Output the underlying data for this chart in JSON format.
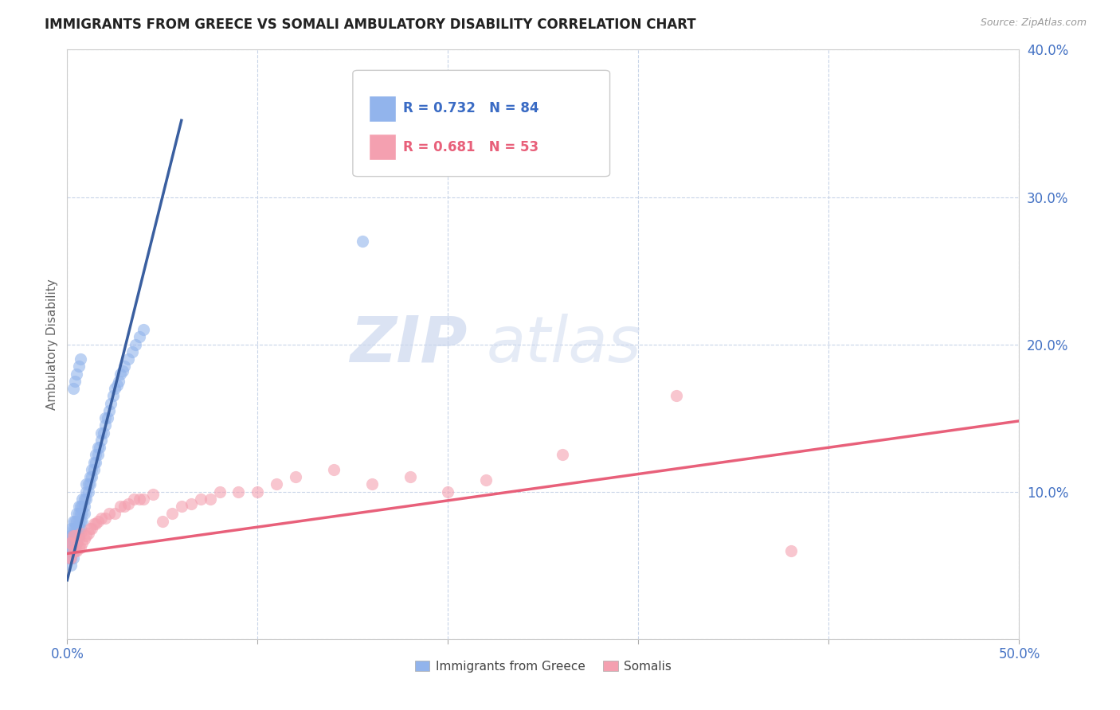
{
  "title": "IMMIGRANTS FROM GREECE VS SOMALI AMBULATORY DISABILITY CORRELATION CHART",
  "source": "Source: ZipAtlas.com",
  "ylabel": "Ambulatory Disability",
  "xlim": [
    0.0,
    0.5
  ],
  "ylim": [
    0.0,
    0.4
  ],
  "xticks": [
    0.0,
    0.1,
    0.2,
    0.3,
    0.4,
    0.5
  ],
  "yticks": [
    0.0,
    0.1,
    0.2,
    0.3,
    0.4
  ],
  "xtick_labels": [
    "0.0%",
    "",
    "",
    "",
    "",
    "50.0%"
  ],
  "ytick_labels_right": [
    "",
    "10.0%",
    "20.0%",
    "30.0%",
    "40.0%"
  ],
  "legend_labels": [
    "Immigrants from Greece",
    "Somalis"
  ],
  "greece_R": "0.732",
  "greece_N": "84",
  "somali_R": "0.681",
  "somali_N": "53",
  "greece_color": "#92b4ec",
  "somali_color": "#f4a0b0",
  "greece_line_color": "#3a5fa0",
  "somali_line_color": "#e8607a",
  "background_color": "#ffffff",
  "grid_color": "#c8d4e8",
  "watermark_zip": "ZIP",
  "watermark_atlas": "atlas",
  "title_fontsize": 12,
  "greece_scatter_x": [
    0.001,
    0.001,
    0.001,
    0.001,
    0.002,
    0.002,
    0.002,
    0.002,
    0.002,
    0.003,
    0.003,
    0.003,
    0.003,
    0.003,
    0.004,
    0.004,
    0.004,
    0.004,
    0.005,
    0.005,
    0.005,
    0.005,
    0.006,
    0.006,
    0.006,
    0.006,
    0.007,
    0.007,
    0.007,
    0.008,
    0.008,
    0.008,
    0.009,
    0.009,
    0.01,
    0.01,
    0.01,
    0.011,
    0.011,
    0.012,
    0.012,
    0.013,
    0.013,
    0.014,
    0.014,
    0.015,
    0.015,
    0.016,
    0.016,
    0.017,
    0.018,
    0.018,
    0.019,
    0.02,
    0.02,
    0.021,
    0.022,
    0.023,
    0.024,
    0.025,
    0.026,
    0.027,
    0.028,
    0.029,
    0.03,
    0.032,
    0.034,
    0.036,
    0.038,
    0.04,
    0.002,
    0.003,
    0.004,
    0.005,
    0.006,
    0.007,
    0.008,
    0.009,
    0.003,
    0.004,
    0.005,
    0.006,
    0.007,
    0.155
  ],
  "greece_scatter_y": [
    0.055,
    0.06,
    0.065,
    0.07,
    0.055,
    0.06,
    0.065,
    0.07,
    0.075,
    0.06,
    0.065,
    0.07,
    0.075,
    0.08,
    0.065,
    0.07,
    0.075,
    0.08,
    0.07,
    0.075,
    0.08,
    0.085,
    0.075,
    0.08,
    0.085,
    0.09,
    0.08,
    0.085,
    0.09,
    0.085,
    0.09,
    0.095,
    0.09,
    0.095,
    0.095,
    0.1,
    0.105,
    0.1,
    0.105,
    0.105,
    0.11,
    0.11,
    0.115,
    0.115,
    0.12,
    0.12,
    0.125,
    0.125,
    0.13,
    0.13,
    0.135,
    0.14,
    0.14,
    0.145,
    0.15,
    0.15,
    0.155,
    0.16,
    0.165,
    0.17,
    0.172,
    0.175,
    0.18,
    0.182,
    0.185,
    0.19,
    0.195,
    0.2,
    0.205,
    0.21,
    0.05,
    0.055,
    0.06,
    0.065,
    0.07,
    0.075,
    0.08,
    0.085,
    0.17,
    0.175,
    0.18,
    0.185,
    0.19,
    0.27
  ],
  "somali_scatter_x": [
    0.001,
    0.001,
    0.002,
    0.002,
    0.003,
    0.003,
    0.004,
    0.004,
    0.005,
    0.005,
    0.006,
    0.006,
    0.007,
    0.007,
    0.008,
    0.009,
    0.01,
    0.011,
    0.012,
    0.013,
    0.014,
    0.015,
    0.016,
    0.018,
    0.02,
    0.022,
    0.025,
    0.028,
    0.03,
    0.032,
    0.035,
    0.038,
    0.04,
    0.045,
    0.05,
    0.055,
    0.06,
    0.065,
    0.07,
    0.075,
    0.08,
    0.09,
    0.1,
    0.11,
    0.12,
    0.14,
    0.16,
    0.18,
    0.2,
    0.22,
    0.26,
    0.32,
    0.38
  ],
  "somali_scatter_y": [
    0.055,
    0.065,
    0.055,
    0.065,
    0.06,
    0.07,
    0.06,
    0.07,
    0.06,
    0.065,
    0.062,
    0.068,
    0.062,
    0.072,
    0.065,
    0.068,
    0.07,
    0.072,
    0.075,
    0.075,
    0.078,
    0.078,
    0.08,
    0.082,
    0.082,
    0.085,
    0.085,
    0.09,
    0.09,
    0.092,
    0.095,
    0.095,
    0.095,
    0.098,
    0.08,
    0.085,
    0.09,
    0.092,
    0.095,
    0.095,
    0.1,
    0.1,
    0.1,
    0.105,
    0.11,
    0.115,
    0.105,
    0.11,
    0.1,
    0.108,
    0.125,
    0.165,
    0.06
  ]
}
